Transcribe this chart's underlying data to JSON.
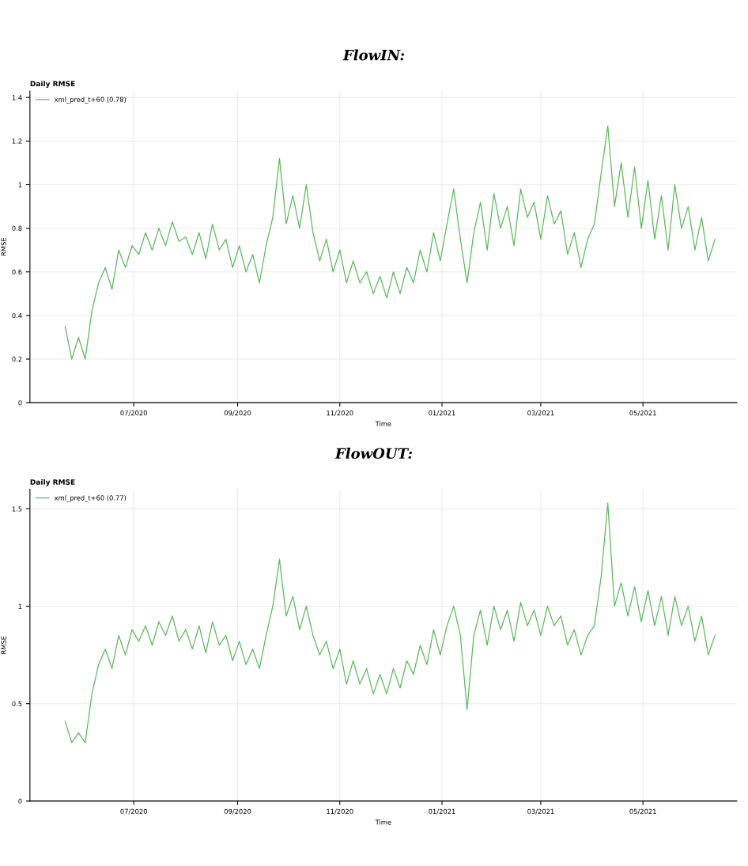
{
  "chart_data": [
    {
      "type": "line",
      "title": "FlowIN:",
      "subtitle": "Daily RMSE",
      "xlabel": "Time",
      "ylabel": "RMSE",
      "x": [
        "2020-05-21",
        "2020-05-25",
        "2020-05-29",
        "2020-06-02",
        "2020-06-06",
        "2020-06-10",
        "2020-06-14",
        "2020-06-18",
        "2020-06-22",
        "2020-06-26",
        "2020-06-30",
        "2020-07-04",
        "2020-07-08",
        "2020-07-12",
        "2020-07-16",
        "2020-07-20",
        "2020-07-24",
        "2020-07-28",
        "2020-08-01",
        "2020-08-05",
        "2020-08-09",
        "2020-08-13",
        "2020-08-17",
        "2020-08-21",
        "2020-08-25",
        "2020-08-29",
        "2020-09-02",
        "2020-09-06",
        "2020-09-10",
        "2020-09-14",
        "2020-09-18",
        "2020-09-22",
        "2020-09-26",
        "2020-09-30",
        "2020-10-04",
        "2020-10-08",
        "2020-10-12",
        "2020-10-16",
        "2020-10-20",
        "2020-10-24",
        "2020-10-28",
        "2020-11-01",
        "2020-11-05",
        "2020-11-09",
        "2020-11-13",
        "2020-11-17",
        "2020-11-21",
        "2020-11-25",
        "2020-11-29",
        "2020-12-03",
        "2020-12-07",
        "2020-12-11",
        "2020-12-15",
        "2020-12-19",
        "2020-12-23",
        "2020-12-27",
        "2020-12-31",
        "2021-01-04",
        "2021-01-08",
        "2021-01-12",
        "2021-01-16",
        "2021-01-20",
        "2021-01-24",
        "2021-01-28",
        "2021-02-01",
        "2021-02-05",
        "2021-02-09",
        "2021-02-13",
        "2021-02-17",
        "2021-02-21",
        "2021-02-25",
        "2021-03-01",
        "2021-03-05",
        "2021-03-09",
        "2021-03-13",
        "2021-03-17",
        "2021-03-21",
        "2021-03-25",
        "2021-03-29",
        "2021-04-02",
        "2021-04-06",
        "2021-04-10",
        "2021-04-14",
        "2021-04-18",
        "2021-04-22",
        "2021-04-26",
        "2021-04-30",
        "2021-05-04",
        "2021-05-08",
        "2021-05-12",
        "2021-05-16",
        "2021-05-20",
        "2021-05-24",
        "2021-05-28",
        "2021-06-01",
        "2021-06-05",
        "2021-06-09",
        "2021-06-13"
      ],
      "series": [
        {
          "name": "xml_pred_t+60 (0.78)",
          "color": "#5cb85c",
          "values": [
            0.35,
            0.2,
            0.3,
            0.2,
            0.42,
            0.55,
            0.62,
            0.52,
            0.7,
            0.62,
            0.72,
            0.68,
            0.78,
            0.7,
            0.8,
            0.72,
            0.83,
            0.74,
            0.76,
            0.68,
            0.78,
            0.66,
            0.82,
            0.7,
            0.75,
            0.62,
            0.72,
            0.6,
            0.68,
            0.55,
            0.72,
            0.85,
            1.12,
            0.82,
            0.95,
            0.8,
            1.0,
            0.78,
            0.65,
            0.75,
            0.6,
            0.7,
            0.55,
            0.65,
            0.55,
            0.6,
            0.5,
            0.58,
            0.48,
            0.6,
            0.5,
            0.62,
            0.55,
            0.7,
            0.6,
            0.78,
            0.65,
            0.82,
            0.98,
            0.75,
            0.55,
            0.78,
            0.92,
            0.7,
            0.96,
            0.8,
            0.9,
            0.72,
            0.98,
            0.85,
            0.92,
            0.75,
            0.95,
            0.82,
            0.88,
            0.68,
            0.78,
            0.62,
            0.75,
            0.82,
            1.05,
            1.27,
            0.9,
            1.1,
            0.85,
            1.08,
            0.8,
            1.02,
            0.75,
            0.95,
            0.7,
            1.0,
            0.8,
            0.9,
            0.7,
            0.85,
            0.65,
            0.75
          ]
        }
      ],
      "xlim": [
        "2020-04-30",
        "2021-06-26"
      ],
      "xticks": [
        {
          "value": "2020-07-01",
          "label": "07/2020"
        },
        {
          "value": "2020-09-01",
          "label": "09/2020"
        },
        {
          "value": "2020-11-01",
          "label": "11/2020"
        },
        {
          "value": "2021-01-01",
          "label": "01/2021"
        },
        {
          "value": "2021-03-01",
          "label": "03/2021"
        },
        {
          "value": "2021-05-01",
          "label": "05/2021"
        }
      ],
      "ylim": [
        0,
        1.43
      ],
      "yticks": [
        0,
        0.2,
        0.4,
        0.6,
        0.8,
        1,
        1.2,
        1.4
      ],
      "grid": true,
      "legend": "top left"
    },
    {
      "type": "line",
      "title": "FlowOUT:",
      "subtitle": "Daily RMSE",
      "xlabel": "Time",
      "ylabel": "RMSE",
      "x": [
        "2020-05-21",
        "2020-05-25",
        "2020-05-29",
        "2020-06-02",
        "2020-06-06",
        "2020-06-10",
        "2020-06-14",
        "2020-06-18",
        "2020-06-22",
        "2020-06-26",
        "2020-06-30",
        "2020-07-04",
        "2020-07-08",
        "2020-07-12",
        "2020-07-16",
        "2020-07-20",
        "2020-07-24",
        "2020-07-28",
        "2020-08-01",
        "2020-08-05",
        "2020-08-09",
        "2020-08-13",
        "2020-08-17",
        "2020-08-21",
        "2020-08-25",
        "2020-08-29",
        "2020-09-02",
        "2020-09-06",
        "2020-09-10",
        "2020-09-14",
        "2020-09-18",
        "2020-09-22",
        "2020-09-26",
        "2020-09-30",
        "2020-10-04",
        "2020-10-08",
        "2020-10-12",
        "2020-10-16",
        "2020-10-20",
        "2020-10-24",
        "2020-10-28",
        "2020-11-01",
        "2020-11-05",
        "2020-11-09",
        "2020-11-13",
        "2020-11-17",
        "2020-11-21",
        "2020-11-25",
        "2020-11-29",
        "2020-12-03",
        "2020-12-07",
        "2020-12-11",
        "2020-12-15",
        "2020-12-19",
        "2020-12-23",
        "2020-12-27",
        "2020-12-31",
        "2021-01-04",
        "2021-01-08",
        "2021-01-12",
        "2021-01-16",
        "2021-01-20",
        "2021-01-24",
        "2021-01-28",
        "2021-02-01",
        "2021-02-05",
        "2021-02-09",
        "2021-02-13",
        "2021-02-17",
        "2021-02-21",
        "2021-02-25",
        "2021-03-01",
        "2021-03-05",
        "2021-03-09",
        "2021-03-13",
        "2021-03-17",
        "2021-03-21",
        "2021-03-25",
        "2021-03-29",
        "2021-04-02",
        "2021-04-06",
        "2021-04-10",
        "2021-04-14",
        "2021-04-18",
        "2021-04-22",
        "2021-04-26",
        "2021-04-30",
        "2021-05-04",
        "2021-05-08",
        "2021-05-12",
        "2021-05-16",
        "2021-05-20",
        "2021-05-24",
        "2021-05-28",
        "2021-06-01",
        "2021-06-05",
        "2021-06-09",
        "2021-06-13"
      ],
      "series": [
        {
          "name": "xml_pred_t+60 (0.77)",
          "color": "#5cb85c",
          "values": [
            0.41,
            0.3,
            0.35,
            0.3,
            0.55,
            0.7,
            0.78,
            0.68,
            0.85,
            0.75,
            0.88,
            0.82,
            0.9,
            0.8,
            0.92,
            0.85,
            0.95,
            0.82,
            0.88,
            0.78,
            0.9,
            0.76,
            0.92,
            0.8,
            0.85,
            0.72,
            0.82,
            0.7,
            0.78,
            0.68,
            0.85,
            1.0,
            1.24,
            0.95,
            1.05,
            0.88,
            1.0,
            0.85,
            0.75,
            0.82,
            0.68,
            0.78,
            0.6,
            0.72,
            0.6,
            0.68,
            0.55,
            0.65,
            0.55,
            0.68,
            0.58,
            0.72,
            0.65,
            0.8,
            0.7,
            0.88,
            0.75,
            0.9,
            1.0,
            0.85,
            0.47,
            0.85,
            0.98,
            0.8,
            1.0,
            0.88,
            0.98,
            0.82,
            1.02,
            0.9,
            0.98,
            0.85,
            1.0,
            0.9,
            0.95,
            0.8,
            0.88,
            0.75,
            0.85,
            0.9,
            1.15,
            1.53,
            1.0,
            1.12,
            0.95,
            1.1,
            0.92,
            1.08,
            0.9,
            1.05,
            0.85,
            1.05,
            0.9,
            1.0,
            0.82,
            0.95,
            0.75,
            0.85
          ]
        }
      ],
      "xlim": [
        "2020-04-30",
        "2021-06-26"
      ],
      "xticks": [
        {
          "value": "2020-07-01",
          "label": "07/2020"
        },
        {
          "value": "2020-09-01",
          "label": "09/2020"
        },
        {
          "value": "2020-11-01",
          "label": "11/2020"
        },
        {
          "value": "2021-01-01",
          "label": "01/2021"
        },
        {
          "value": "2021-03-01",
          "label": "03/2021"
        },
        {
          "value": "2021-05-01",
          "label": "05/2021"
        }
      ],
      "ylim": [
        0,
        1.6
      ],
      "yticks": [
        0,
        0.5,
        1,
        1.5
      ],
      "grid": true,
      "legend": "top left"
    }
  ]
}
